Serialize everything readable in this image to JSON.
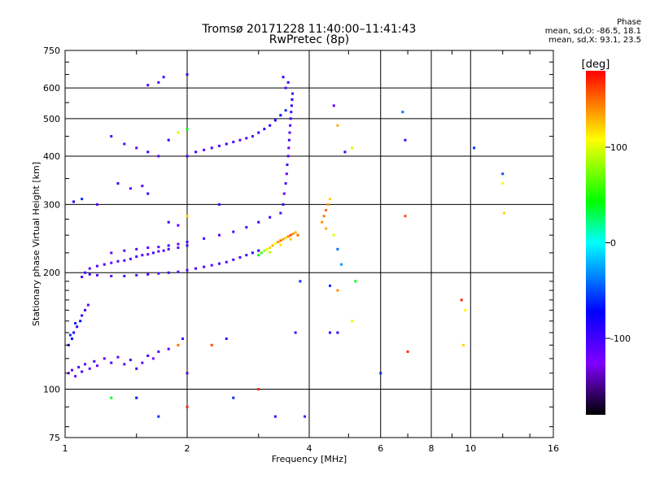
{
  "header": {
    "title_line1": "Tromsø 20171228 11:40:00–11:41:43",
    "title_line2": "RwPretec (8p)"
  },
  "phase_box": {
    "label": "Phase",
    "line_o": "mean, sd,O: -86.5, 18.1",
    "line_x": "mean, sd,X:  93.1, 23.5"
  },
  "chart_data": {
    "type": "scatter",
    "xlabel": "Frequency [MHz]",
    "ylabel": "Stationary phase Virtual Height [km]",
    "xscale": "log",
    "yscale": "log",
    "xlim": [
      1,
      16
    ],
    "ylim": [
      75,
      750
    ],
    "xticks": [
      1,
      2,
      4,
      6,
      8,
      10,
      16
    ],
    "xtick_labels": [
      "1",
      "2",
      "4",
      "6",
      "8",
      "10",
      "16"
    ],
    "yticks": [
      75,
      100,
      200,
      300,
      400,
      500,
      600,
      750
    ],
    "ytick_labels": [
      "75",
      "100",
      "200",
      "300",
      "400",
      "500",
      "600",
      "750"
    ],
    "colorbar": {
      "label": "[deg]",
      "range": [
        -180,
        180
      ],
      "ticks": [
        100,
        0,
        -100
      ],
      "tick_labels": [
        "100",
        "0",
        "-100"
      ]
    },
    "color_scale": [
      "#000000",
      "#7f00ff",
      "#0000ff",
      "#00ffff",
      "#00ff00",
      "#ffff00",
      "#ff0000"
    ],
    "points": [
      [
        1.02,
        110,
        -120
      ],
      [
        1.04,
        112,
        -110
      ],
      [
        1.06,
        108,
        -115
      ],
      [
        1.08,
        114,
        -105
      ],
      [
        1.1,
        111,
        -100
      ],
      [
        1.12,
        116,
        -108
      ],
      [
        1.15,
        113,
        -112
      ],
      [
        1.18,
        118,
        -102
      ],
      [
        1.2,
        115,
        -120
      ],
      [
        1.25,
        120,
        -110
      ],
      [
        1.3,
        117,
        -104
      ],
      [
        1.35,
        121,
        -115
      ],
      [
        1.4,
        116,
        -108
      ],
      [
        1.45,
        119,
        -100
      ],
      [
        1.5,
        113,
        -90
      ],
      [
        1.55,
        117,
        -112
      ],
      [
        1.6,
        122,
        -98
      ],
      [
        1.65,
        120,
        -125
      ],
      [
        1.7,
        125,
        -105
      ],
      [
        1.8,
        127,
        -110
      ],
      [
        1.02,
        130,
        -80
      ],
      [
        1.04,
        135,
        -75
      ],
      [
        1.05,
        140,
        -85
      ],
      [
        1.07,
        145,
        -90
      ],
      [
        1.09,
        150,
        -70
      ],
      [
        1.1,
        155,
        -95
      ],
      [
        1.12,
        160,
        -100
      ],
      [
        1.14,
        165,
        -105
      ],
      [
        1.03,
        138,
        -60
      ],
      [
        1.06,
        148,
        -65
      ],
      [
        1.1,
        195,
        -100
      ],
      [
        1.12,
        200,
        -95
      ],
      [
        1.15,
        205,
        -110
      ],
      [
        1.2,
        208,
        -105
      ],
      [
        1.25,
        210,
        -100
      ],
      [
        1.3,
        212,
        -115
      ],
      [
        1.35,
        214,
        -108
      ],
      [
        1.4,
        215,
        -102
      ],
      [
        1.45,
        217,
        -112
      ],
      [
        1.5,
        220,
        -98
      ],
      [
        1.55,
        222,
        -105
      ],
      [
        1.6,
        223,
        -110
      ],
      [
        1.65,
        225,
        -100
      ],
      [
        1.7,
        227,
        -115
      ],
      [
        1.75,
        228,
        -108
      ],
      [
        1.8,
        230,
        -104
      ],
      [
        1.9,
        232,
        -110
      ],
      [
        2.0,
        235,
        -100
      ],
      [
        1.15,
        198,
        -100
      ],
      [
        1.2,
        197,
        -105
      ],
      [
        1.3,
        196,
        -110
      ],
      [
        1.4,
        196,
        -100
      ],
      [
        1.5,
        197,
        -108
      ],
      [
        1.6,
        198,
        -104
      ],
      [
        1.7,
        199,
        -112
      ],
      [
        1.8,
        200,
        -100
      ],
      [
        1.9,
        201,
        -106
      ],
      [
        2.0,
        203,
        -110
      ],
      [
        2.1,
        205,
        -100
      ],
      [
        2.2,
        207,
        -104
      ],
      [
        2.3,
        209,
        -112
      ],
      [
        2.4,
        211,
        -102
      ],
      [
        2.5,
        213,
        -108
      ],
      [
        2.6,
        216,
        -100
      ],
      [
        2.7,
        219,
        -104
      ],
      [
        2.8,
        222,
        -98
      ],
      [
        2.9,
        225,
        -95
      ],
      [
        3.0,
        228,
        -90
      ],
      [
        1.3,
        225,
        -115
      ],
      [
        1.4,
        228,
        -110
      ],
      [
        1.5,
        230,
        -105
      ],
      [
        1.6,
        232,
        -112
      ],
      [
        1.7,
        233,
        -108
      ],
      [
        1.8,
        235,
        -100
      ],
      [
        1.9,
        237,
        -115
      ],
      [
        2.0,
        240,
        -105
      ],
      [
        2.2,
        245,
        -100
      ],
      [
        2.4,
        250,
        -110
      ],
      [
        2.6,
        255,
        -105
      ],
      [
        2.8,
        262,
        -100
      ],
      [
        3.0,
        270,
        -95
      ],
      [
        3.2,
        278,
        -100
      ],
      [
        3.4,
        285,
        -105
      ],
      [
        3.0,
        222,
        40
      ],
      [
        3.05,
        225,
        60
      ],
      [
        3.1,
        228,
        80
      ],
      [
        3.15,
        230,
        100
      ],
      [
        3.2,
        232,
        120
      ],
      [
        3.25,
        235,
        130
      ],
      [
        3.3,
        238,
        110
      ],
      [
        3.35,
        240,
        140
      ],
      [
        3.4,
        242,
        150
      ],
      [
        3.45,
        244,
        135
      ],
      [
        3.5,
        246,
        120
      ],
      [
        3.55,
        248,
        145
      ],
      [
        3.6,
        250,
        160
      ],
      [
        3.65,
        252,
        140
      ],
      [
        3.7,
        254,
        130
      ],
      [
        3.75,
        250,
        150
      ],
      [
        3.2,
        226,
        90
      ],
      [
        3.4,
        236,
        115
      ],
      [
        3.6,
        244,
        125
      ],
      [
        3.45,
        300,
        -100
      ],
      [
        3.47,
        320,
        -110
      ],
      [
        3.5,
        340,
        -105
      ],
      [
        3.52,
        360,
        -115
      ],
      [
        3.53,
        380,
        -100
      ],
      [
        3.55,
        400,
        -108
      ],
      [
        3.56,
        420,
        -112
      ],
      [
        3.57,
        440,
        -100
      ],
      [
        3.58,
        460,
        -105
      ],
      [
        3.59,
        480,
        -110
      ],
      [
        3.6,
        500,
        -100
      ],
      [
        3.61,
        520,
        -95
      ],
      [
        3.62,
        540,
        -90
      ],
      [
        3.63,
        560,
        -80
      ],
      [
        3.64,
        580,
        -100
      ],
      [
        3.5,
        600,
        -110
      ],
      [
        3.55,
        620,
        -100
      ],
      [
        3.45,
        640,
        -90
      ],
      [
        2.0,
        400,
        -105
      ],
      [
        2.1,
        410,
        -100
      ],
      [
        2.2,
        415,
        -110
      ],
      [
        2.3,
        420,
        -100
      ],
      [
        2.4,
        425,
        -105
      ],
      [
        2.5,
        430,
        -95
      ],
      [
        2.6,
        435,
        -100
      ],
      [
        2.7,
        440,
        -108
      ],
      [
        2.8,
        445,
        -102
      ],
      [
        2.9,
        450,
        -100
      ],
      [
        3.0,
        460,
        -95
      ],
      [
        3.1,
        470,
        -90
      ],
      [
        3.2,
        480,
        -85
      ],
      [
        3.3,
        495,
        -80
      ],
      [
        3.4,
        510,
        -70
      ],
      [
        3.5,
        525,
        -60
      ],
      [
        4.3,
        270,
        140
      ],
      [
        4.35,
        280,
        145
      ],
      [
        4.4,
        290,
        150
      ],
      [
        4.45,
        300,
        135
      ],
      [
        4.5,
        310,
        120
      ],
      [
        4.4,
        260,
        130
      ],
      [
        4.6,
        250,
        100
      ],
      [
        4.7,
        230,
        -40
      ],
      [
        4.8,
        210,
        -30
      ],
      [
        4.6,
        540,
        -110
      ],
      [
        4.7,
        480,
        130
      ],
      [
        5.1,
        420,
        100
      ],
      [
        4.9,
        410,
        -95
      ],
      [
        6.8,
        520,
        -40
      ],
      [
        6.9,
        440,
        -100
      ],
      [
        6.9,
        280,
        160
      ],
      [
        7.0,
        125,
        170
      ],
      [
        9.5,
        170,
        170
      ],
      [
        9.7,
        160,
        110
      ],
      [
        9.6,
        130,
        120
      ],
      [
        10.2,
        420,
        -60
      ],
      [
        12.0,
        360,
        -50
      ],
      [
        12.0,
        340,
        110
      ],
      [
        12.1,
        285,
        120
      ],
      [
        1.3,
        450,
        -100
      ],
      [
        1.4,
        430,
        -105
      ],
      [
        1.5,
        420,
        -110
      ],
      [
        1.6,
        410,
        -100
      ],
      [
        1.7,
        400,
        -108
      ],
      [
        1.8,
        440,
        -95
      ],
      [
        1.9,
        460,
        100
      ],
      [
        2.0,
        470,
        40
      ],
      [
        1.6,
        610,
        -100
      ],
      [
        1.7,
        620,
        -110
      ],
      [
        1.75,
        640,
        -100
      ],
      [
        2.0,
        650,
        -95
      ],
      [
        1.05,
        305,
        -80
      ],
      [
        1.1,
        310,
        -60
      ],
      [
        1.2,
        300,
        -105
      ],
      [
        1.35,
        340,
        -100
      ],
      [
        1.45,
        330,
        -110
      ],
      [
        1.55,
        335,
        -105
      ],
      [
        1.6,
        320,
        -95
      ],
      [
        1.8,
        270,
        -100
      ],
      [
        1.9,
        265,
        -110
      ],
      [
        2.0,
        280,
        120
      ],
      [
        2.4,
        300,
        -100
      ],
      [
        1.9,
        130,
        150
      ],
      [
        1.95,
        135,
        -100
      ],
      [
        2.0,
        110,
        -105
      ],
      [
        2.3,
        130,
        160
      ],
      [
        2.5,
        135,
        -100
      ],
      [
        3.0,
        100,
        170
      ],
      [
        3.7,
        140,
        -100
      ],
      [
        3.8,
        190,
        -60
      ],
      [
        4.5,
        140,
        -100
      ],
      [
        4.7,
        140,
        -90
      ],
      [
        5.1,
        150,
        100
      ],
      [
        5.2,
        190,
        40
      ],
      [
        4.5,
        185,
        -60
      ],
      [
        4.7,
        180,
        140
      ],
      [
        1.3,
        95,
        40
      ],
      [
        1.5,
        95,
        -70
      ],
      [
        1.7,
        85,
        -60
      ],
      [
        2.0,
        90,
        170
      ],
      [
        2.6,
        95,
        -60
      ],
      [
        3.3,
        85,
        -100
      ],
      [
        3.9,
        85,
        -110
      ],
      [
        6.0,
        110,
        -60
      ]
    ]
  }
}
